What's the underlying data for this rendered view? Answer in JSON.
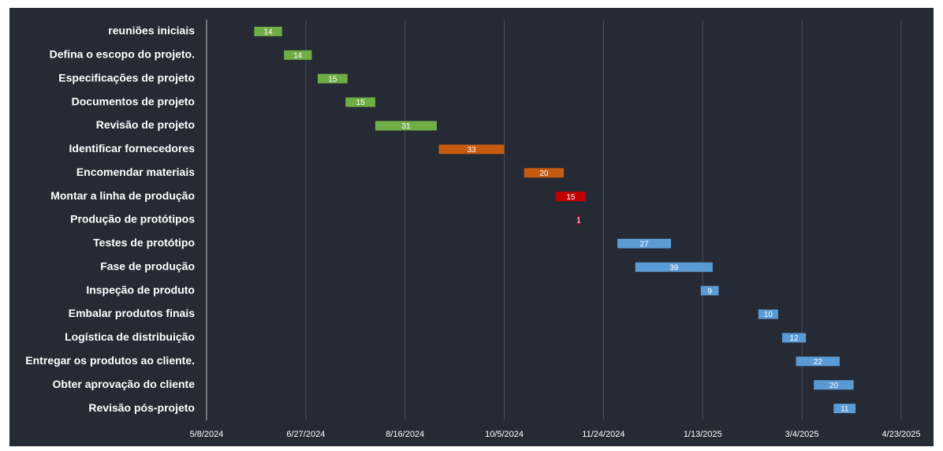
{
  "chart_data": {
    "type": "gantt",
    "categories": [
      "reuniões iniciais",
      "Defina o escopo do projeto.",
      "Especificações de projeto",
      "Documentos de projeto",
      "Revisão de projeto",
      "Identificar fornecedores",
      "Encomendar materiais",
      "Montar a linha de produção",
      "Produção de protótipos",
      "Testes de protótipo",
      "Fase de produção",
      "Inspeção de produto",
      "Embalar produtos finais",
      "Logística de distribuição",
      "Entregar os produtos ao cliente.",
      "Obter aprovação do cliente",
      "Revisão pós-projeto"
    ],
    "starts": [
      "6/1/2024",
      "6/16/2024",
      "7/3/2024",
      "7/17/2024",
      "8/1/2024",
      "9/2/2024",
      "10/15/2024",
      "10/31/2024",
      "11/11/2024",
      "12/1/2024",
      "12/10/2024",
      "1/12/2025",
      "2/10/2025",
      "2/22/2025",
      "3/1/2025",
      "3/10/2025",
      "3/20/2025"
    ],
    "durations": [
      14,
      14,
      15,
      15,
      31,
      33,
      20,
      15,
      1,
      27,
      39,
      9,
      10,
      12,
      22,
      20,
      11
    ],
    "colors": [
      "#70ad47",
      "#70ad47",
      "#70ad47",
      "#70ad47",
      "#70ad47",
      "#c55a11",
      "#c55a11",
      "#c00000",
      "#c00000",
      "#5b9bd5",
      "#5b9bd5",
      "#5b9bd5",
      "#5b9bd5",
      "#5b9bd5",
      "#5b9bd5",
      "#5b9bd5",
      "#5b9bd5"
    ],
    "xlim": [
      "5/8/2024",
      "4/23/2025"
    ],
    "xticks": [
      "5/8/2024",
      "6/27/2024",
      "8/16/2024",
      "10/5/2024",
      "11/24/2024",
      "1/13/2025",
      "3/4/2025",
      "4/23/2025"
    ],
    "grid": true
  }
}
